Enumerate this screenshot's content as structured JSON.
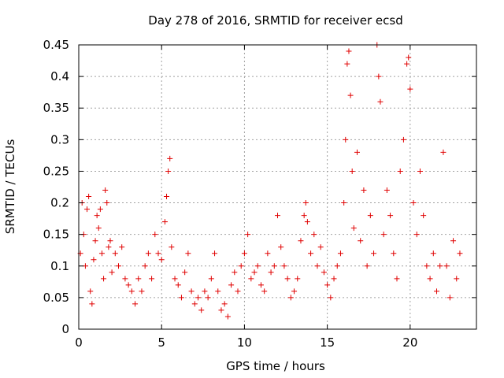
{
  "chart_data": {
    "type": "scatter",
    "title": "Day 278 of 2016, SRMTID for receiver ecsd",
    "xlabel": "GPS time / hours",
    "ylabel": "SRMTID / TECUs",
    "xlim": [
      0,
      24
    ],
    "ylim": [
      0,
      0.45
    ],
    "x_ticks": [
      0,
      5,
      10,
      15,
      20
    ],
    "x_tick_labels": [
      "0",
      "5",
      "10",
      "15",
      "20"
    ],
    "y_ticks": [
      0,
      0.05,
      0.1,
      0.15,
      0.2,
      0.25,
      0.3,
      0.35,
      0.4,
      0.45
    ],
    "y_tick_labels": [
      "0",
      "0.05",
      "0.1",
      "0.15",
      "0.2",
      "0.25",
      "0.3",
      "0.35",
      "0.4",
      "0.45"
    ],
    "grid": true,
    "marker": "+",
    "color": "#e00000",
    "series": [
      {
        "name": "SRMTID",
        "points": [
          [
            0.1,
            0.12
          ],
          [
            0.2,
            0.2
          ],
          [
            0.3,
            0.15
          ],
          [
            0.4,
            0.1
          ],
          [
            0.5,
            0.19
          ],
          [
            0.6,
            0.21
          ],
          [
            0.7,
            0.06
          ],
          [
            0.8,
            0.04
          ],
          [
            0.9,
            0.11
          ],
          [
            1.0,
            0.14
          ],
          [
            1.1,
            0.18
          ],
          [
            1.2,
            0.16
          ],
          [
            1.3,
            0.19
          ],
          [
            1.4,
            0.12
          ],
          [
            1.5,
            0.08
          ],
          [
            1.6,
            0.22
          ],
          [
            1.7,
            0.2
          ],
          [
            1.8,
            0.13
          ],
          [
            1.9,
            0.14
          ],
          [
            2.0,
            0.09
          ],
          [
            2.2,
            0.12
          ],
          [
            2.4,
            0.1
          ],
          [
            2.6,
            0.13
          ],
          [
            2.8,
            0.08
          ],
          [
            3.0,
            0.07
          ],
          [
            3.2,
            0.06
          ],
          [
            3.4,
            0.04
          ],
          [
            3.6,
            0.08
          ],
          [
            3.8,
            0.06
          ],
          [
            4.0,
            0.1
          ],
          [
            4.2,
            0.12
          ],
          [
            4.4,
            0.08
          ],
          [
            4.6,
            0.15
          ],
          [
            4.8,
            0.12
          ],
          [
            5.0,
            0.11
          ],
          [
            5.2,
            0.17
          ],
          [
            5.3,
            0.21
          ],
          [
            5.4,
            0.25
          ],
          [
            5.5,
            0.27
          ],
          [
            5.6,
            0.13
          ],
          [
            5.8,
            0.08
          ],
          [
            6.0,
            0.07
          ],
          [
            6.2,
            0.05
          ],
          [
            6.4,
            0.09
          ],
          [
            6.6,
            0.12
          ],
          [
            6.8,
            0.06
          ],
          [
            7.0,
            0.04
          ],
          [
            7.2,
            0.05
          ],
          [
            7.4,
            0.03
          ],
          [
            7.6,
            0.06
          ],
          [
            7.8,
            0.05
          ],
          [
            8.0,
            0.08
          ],
          [
            8.2,
            0.12
          ],
          [
            8.4,
            0.06
          ],
          [
            8.6,
            0.03
          ],
          [
            8.8,
            0.04
          ],
          [
            9.0,
            0.02
          ],
          [
            9.2,
            0.07
          ],
          [
            9.4,
            0.09
          ],
          [
            9.6,
            0.06
          ],
          [
            9.8,
            0.1
          ],
          [
            10.0,
            0.12
          ],
          [
            10.2,
            0.15
          ],
          [
            10.4,
            0.08
          ],
          [
            10.6,
            0.09
          ],
          [
            10.8,
            0.1
          ],
          [
            11.0,
            0.07
          ],
          [
            11.2,
            0.06
          ],
          [
            11.4,
            0.12
          ],
          [
            11.6,
            0.09
          ],
          [
            11.8,
            0.1
          ],
          [
            12.0,
            0.18
          ],
          [
            12.2,
            0.13
          ],
          [
            12.4,
            0.1
          ],
          [
            12.6,
            0.08
          ],
          [
            12.8,
            0.05
          ],
          [
            13.0,
            0.06
          ],
          [
            13.2,
            0.08
          ],
          [
            13.4,
            0.14
          ],
          [
            13.6,
            0.18
          ],
          [
            13.7,
            0.2
          ],
          [
            13.8,
            0.17
          ],
          [
            14.0,
            0.12
          ],
          [
            14.2,
            0.15
          ],
          [
            14.4,
            0.1
          ],
          [
            14.6,
            0.13
          ],
          [
            14.8,
            0.09
          ],
          [
            15.0,
            0.07
          ],
          [
            15.2,
            0.05
          ],
          [
            15.4,
            0.08
          ],
          [
            15.6,
            0.1
          ],
          [
            15.8,
            0.12
          ],
          [
            16.0,
            0.2
          ],
          [
            16.1,
            0.3
          ],
          [
            16.2,
            0.42
          ],
          [
            16.3,
            0.44
          ],
          [
            16.4,
            0.37
          ],
          [
            16.5,
            0.25
          ],
          [
            16.6,
            0.16
          ],
          [
            16.8,
            0.28
          ],
          [
            17.0,
            0.14
          ],
          [
            17.2,
            0.22
          ],
          [
            17.4,
            0.1
          ],
          [
            17.6,
            0.18
          ],
          [
            17.8,
            0.12
          ],
          [
            18.0,
            0.45
          ],
          [
            18.1,
            0.4
          ],
          [
            18.2,
            0.36
          ],
          [
            18.4,
            0.15
          ],
          [
            18.6,
            0.22
          ],
          [
            18.8,
            0.18
          ],
          [
            19.0,
            0.12
          ],
          [
            19.2,
            0.08
          ],
          [
            19.4,
            0.25
          ],
          [
            19.6,
            0.3
          ],
          [
            19.8,
            0.42
          ],
          [
            19.9,
            0.43
          ],
          [
            20.0,
            0.38
          ],
          [
            20.2,
            0.2
          ],
          [
            20.4,
            0.15
          ],
          [
            20.6,
            0.25
          ],
          [
            20.8,
            0.18
          ],
          [
            21.0,
            0.1
          ],
          [
            21.2,
            0.08
          ],
          [
            21.4,
            0.12
          ],
          [
            21.6,
            0.06
          ],
          [
            21.8,
            0.1
          ],
          [
            22.0,
            0.28
          ],
          [
            22.2,
            0.1
          ],
          [
            22.4,
            0.05
          ],
          [
            22.6,
            0.14
          ],
          [
            22.8,
            0.08
          ],
          [
            23.0,
            0.12
          ]
        ]
      }
    ]
  }
}
